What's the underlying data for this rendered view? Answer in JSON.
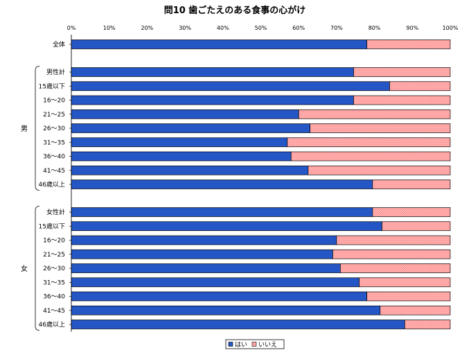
{
  "chart_data": {
    "type": "bar",
    "orientation": "horizontal",
    "stacked": true,
    "percent": true,
    "title": "問10 歯ごたえのある食事の心がけ",
    "xlim": [
      0,
      100
    ],
    "x_ticks": [
      "0%",
      "10%",
      "20%",
      "30%",
      "40%",
      "50%",
      "60%",
      "70%",
      "80%",
      "90%",
      "100%"
    ],
    "groups": [
      {
        "label": "",
        "categories": [
          "全体"
        ]
      },
      {
        "label": "男",
        "categories": [
          "男性計",
          "15歳以下",
          "16～20",
          "21～25",
          "26～30",
          "31～35",
          "36～40",
          "41～45",
          "46歳以上"
        ]
      },
      {
        "label": "女",
        "categories": [
          "女性計",
          "15歳以下",
          "16～20",
          "21～25",
          "26～30",
          "31～35",
          "36～40",
          "41～45",
          "46歳以上"
        ]
      }
    ],
    "series": [
      {
        "name": "はい",
        "color": "#2457c5",
        "values": [
          [
            78
          ],
          [
            74.5,
            84,
            74.5,
            60,
            63,
            57,
            58,
            62.5,
            79.5
          ],
          [
            79.5,
            82,
            70,
            69,
            71,
            76,
            78,
            81.5,
            88
          ]
        ]
      },
      {
        "name": "いいえ",
        "color": "#ff9a9a",
        "values": [
          [
            22
          ],
          [
            25.5,
            16,
            25.5,
            40,
            37,
            43,
            42,
            37.5,
            20.5
          ],
          [
            20.5,
            18,
            30,
            31,
            29,
            24,
            22,
            18.5,
            12
          ]
        ]
      }
    ],
    "legend": {
      "position": "bottom",
      "entries": [
        "はい",
        "いいえ"
      ]
    }
  }
}
